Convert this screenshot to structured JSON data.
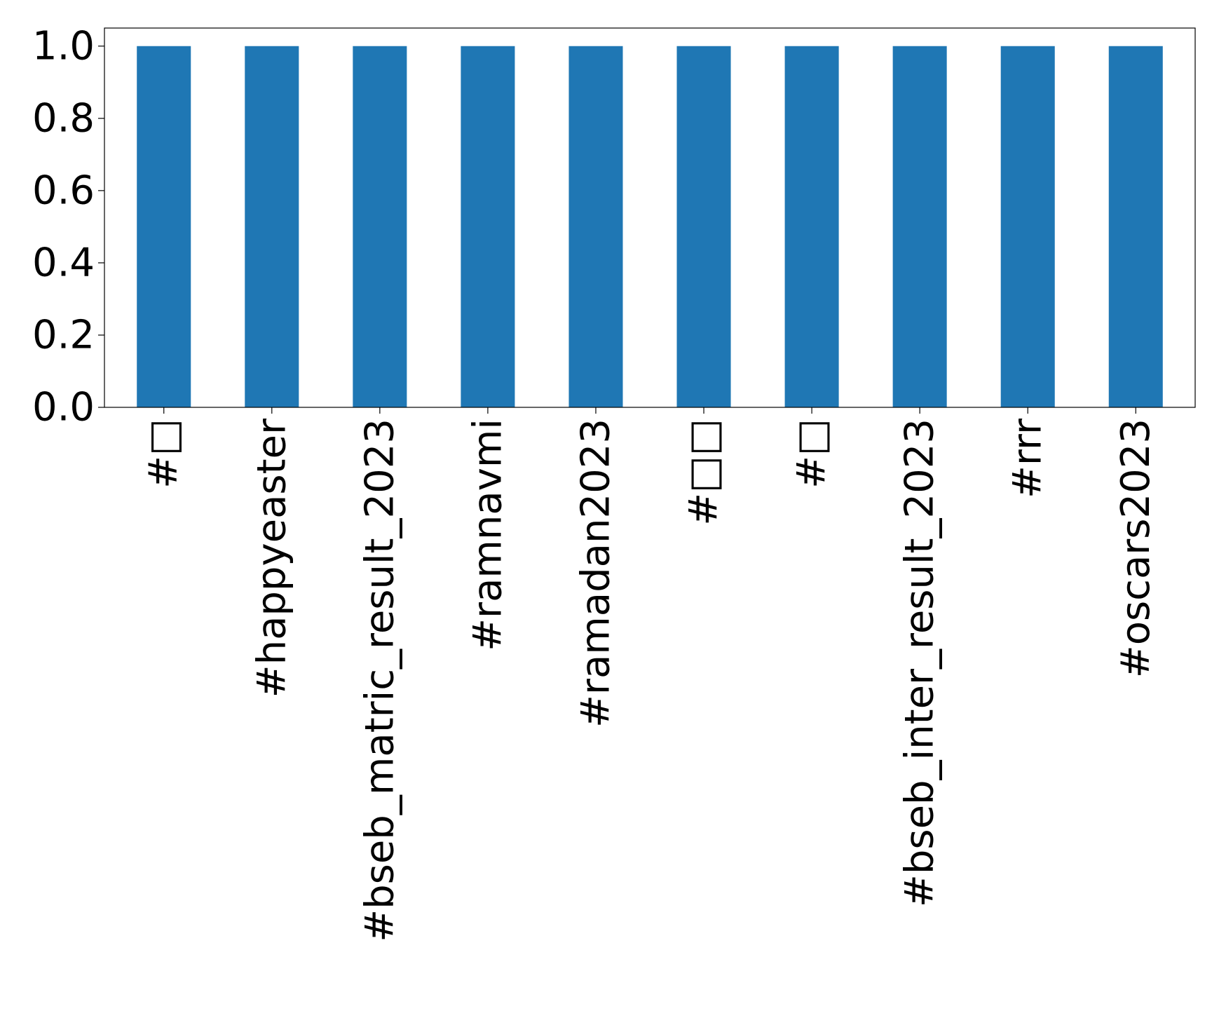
{
  "chart_data": {
    "type": "bar",
    "categories": [
      "#□",
      "#happyeaster",
      "#bseb_matric_result_2023",
      "#ramnavmi",
      "#ramadan2023",
      "#□□",
      "#□",
      "#bseb_inter_result_2023",
      "#rrr",
      "#oscars2023"
    ],
    "values": [
      1.0,
      1.0,
      1.0,
      1.0,
      1.0,
      1.0,
      1.0,
      1.0,
      1.0,
      1.0
    ],
    "y_ticks": [
      "0.0",
      "0.2",
      "0.4",
      "0.6",
      "0.8",
      "1.0"
    ],
    "ylim": [
      0,
      1.05
    ],
    "grid": false,
    "bar_color": "#1f77b4",
    "title": "",
    "xlabel": "",
    "ylabel": ""
  }
}
